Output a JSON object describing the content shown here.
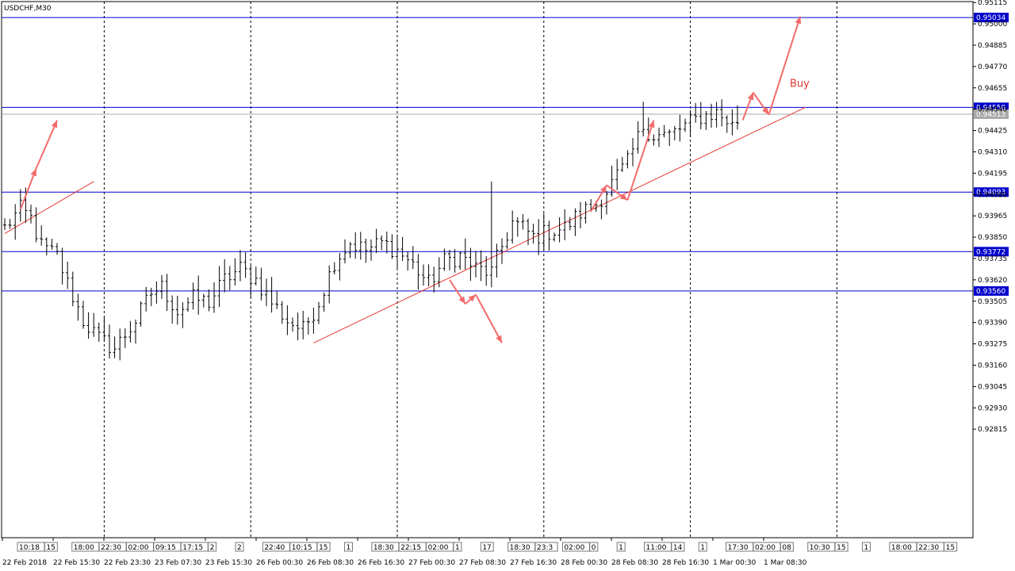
{
  "chart_data": {
    "type": "candlestick",
    "title": "USDCHF,M30",
    "symbol": "USDCHF",
    "timeframe": "M30",
    "ylim": [
      0.9223,
      0.9512
    ],
    "y_ticks": [
      "0.95115",
      "0.95000",
      "0.94885",
      "0.94770",
      "0.94655",
      "0.94540",
      "0.94425",
      "0.94310",
      "0.94195",
      "0.94080",
      "0.93965",
      "0.93850",
      "0.93735",
      "0.93620",
      "0.93505",
      "0.93390",
      "0.93275",
      "0.93160",
      "0.93045",
      "0.92930",
      "0.92815"
    ],
    "x_ticks": [
      "22 Feb 2018",
      "22 Feb 15:30",
      "22 Feb 23:30",
      "23 Feb 07:30",
      "23 Feb 15:30",
      "26 Feb 00:30",
      "26 Feb 08:30",
      "26 Feb 16:30",
      "27 Feb 00:30",
      "27 Feb 08:30",
      "27 Feb 16:30",
      "28 Feb 00:30",
      "28 Feb 08:30",
      "28 Feb 16:30",
      "1 Mar 00:30",
      "1 Mar 08:30"
    ],
    "grid_bars": [
      19,
      47,
      75,
      103,
      131,
      159
    ],
    "bar_count": 168,
    "levels": [
      {
        "value": "0.95034",
        "price": 0.95034,
        "color": "#0000cc"
      },
      {
        "value": "0.94550",
        "price": 0.9455,
        "color": "#0000cc"
      },
      {
        "value": "0.94513",
        "price": 0.94513,
        "color": "#aaaaaa"
      },
      {
        "value": "0.94093",
        "price": 0.94093,
        "color": "#0000cc"
      },
      {
        "value": "0.93772",
        "price": 0.93772,
        "color": "#0000cc"
      },
      {
        "value": "0.93560",
        "price": 0.9356,
        "color": "#0000cc"
      }
    ],
    "close_path": [
      [
        0,
        0.939
      ],
      [
        3,
        0.94
      ],
      [
        5,
        0.9395
      ],
      [
        7,
        0.938
      ],
      [
        10,
        0.9375
      ],
      [
        12,
        0.936
      ],
      [
        15,
        0.934
      ],
      [
        18,
        0.933
      ],
      [
        21,
        0.9325
      ],
      [
        25,
        0.934
      ],
      [
        28,
        0.9355
      ],
      [
        30,
        0.9358
      ],
      [
        33,
        0.9345
      ],
      [
        36,
        0.9352
      ],
      [
        39,
        0.935
      ],
      [
        42,
        0.9362
      ],
      [
        45,
        0.9368
      ],
      [
        48,
        0.9362
      ],
      [
        51,
        0.935
      ],
      [
        54,
        0.934
      ],
      [
        57,
        0.9335
      ],
      [
        60,
        0.935
      ],
      [
        63,
        0.9372
      ],
      [
        66,
        0.9382
      ],
      [
        69,
        0.9378
      ],
      [
        72,
        0.9382
      ],
      [
        75,
        0.9378
      ],
      [
        78,
        0.937
      ],
      [
        81,
        0.936
      ],
      [
        84,
        0.9372
      ],
      [
        87,
        0.9375
      ],
      [
        90,
        0.9368
      ],
      [
        93,
        0.9366
      ],
      [
        95,
        0.938
      ],
      [
        97,
        0.9393
      ],
      [
        99,
        0.939
      ],
      [
        101,
        0.9385
      ],
      [
        104,
        0.9388
      ],
      [
        107,
        0.939
      ],
      [
        110,
        0.9398
      ],
      [
        113,
        0.9403
      ],
      [
        115,
        0.941
      ],
      [
        117,
        0.9418
      ],
      [
        119,
        0.9425
      ],
      [
        122,
        0.9445
      ],
      [
        124,
        0.944
      ],
      [
        127,
        0.944
      ],
      [
        130,
        0.9445
      ],
      [
        133,
        0.945
      ],
      [
        136,
        0.9452
      ],
      [
        138,
        0.9448
      ],
      [
        139,
        0.9445
      ],
      [
        140,
        0.9448
      ]
    ],
    "spikes": [
      {
        "bar": 93,
        "high": 0.9415
      },
      {
        "bar": 122,
        "high": 0.9458
      },
      {
        "bar": 140,
        "high": 0.9456
      }
    ],
    "trendlines": [
      {
        "from": [
          0,
          0.9387
        ],
        "to": [
          17,
          0.9415
        ]
      },
      {
        "from": [
          59,
          0.9328
        ],
        "to": [
          153,
          0.9455
        ]
      }
    ],
    "arrows": [
      [
        [
          3,
          0.94
        ],
        [
          6,
          0.9422
        ]
      ],
      [
        [
          6,
          0.9422
        ],
        [
          10,
          0.9448
        ]
      ],
      [
        [
          85,
          0.9362
        ],
        [
          88,
          0.9349
        ]
      ],
      [
        [
          88,
          0.9349
        ],
        [
          90,
          0.9354
        ]
      ],
      [
        [
          90,
          0.9354
        ],
        [
          95,
          0.9328
        ]
      ],
      [
        [
          112,
          0.9399
        ],
        [
          115,
          0.9413
        ]
      ],
      [
        [
          115,
          0.9413
        ],
        [
          119,
          0.9405
        ]
      ],
      [
        [
          119,
          0.9405
        ],
        [
          124,
          0.9448
        ]
      ],
      [
        [
          141,
          0.9448
        ],
        [
          143,
          0.9463
        ]
      ],
      [
        [
          143,
          0.9463
        ],
        [
          146,
          0.9451
        ]
      ],
      [
        [
          146,
          0.9451
        ],
        [
          152,
          0.9504
        ]
      ]
    ],
    "annotations": [
      {
        "text": "Buy",
        "bar": 150,
        "price": 0.9466,
        "color": "#e53935"
      }
    ],
    "time_markers": [
      "10:18",
      "15",
      "18:00",
      "22:30",
      "02:00",
      "09:15",
      "17:15",
      "2",
      "2",
      "22:40",
      "10:15",
      "15",
      "1",
      "18:30",
      "22:15",
      "02:00",
      "1",
      "17",
      "18:30",
      "23:3",
      "02:00",
      "0",
      "1",
      "11:00",
      "14",
      "1",
      "17:30",
      "02:00",
      "08",
      "10:30",
      "15",
      "1",
      "18:00",
      "22:30",
      "15"
    ],
    "colors": {
      "candle": "#000000",
      "level": "#0000cc",
      "trendline": "#e53935",
      "arrow": "#f36b6b",
      "grid": "#000000"
    }
  }
}
